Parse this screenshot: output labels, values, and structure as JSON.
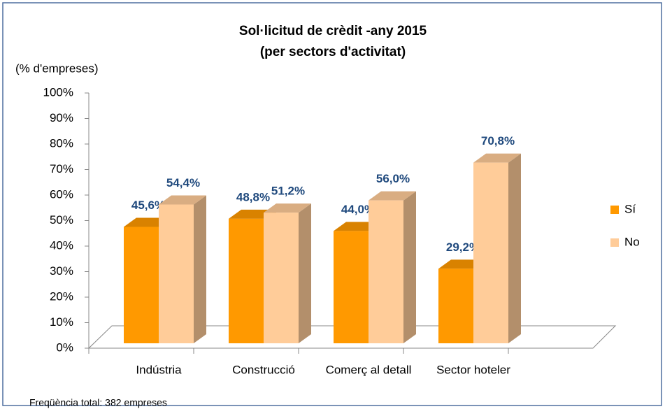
{
  "chart_data": {
    "type": "bar3d",
    "title": "Sol·licitud de crèdit -any 2015",
    "subtitle": "(per sectors d'activitat)",
    "ylabel": "(% d'empreses)",
    "footnote": "Freqüència total: 382 empreses",
    "categories": [
      "Indústria",
      "Construcció",
      "Comerç al detall",
      "Sector hoteler"
    ],
    "series": [
      {
        "name": "Sí",
        "color": "#ff9900",
        "values": [
          45.6,
          48.8,
          44.0,
          29.2
        ],
        "value_labels": [
          "45,6%",
          "48,8%",
          "44,0%",
          "29,2%"
        ]
      },
      {
        "name": "No",
        "color": "#ffcc99",
        "values": [
          54.4,
          51.2,
          56.0,
          70.8
        ],
        "value_labels": [
          "54,4%",
          "51,2%",
          "56,0%",
          "70,8%"
        ]
      }
    ],
    "ylim": [
      0,
      100
    ],
    "yticks": [
      {
        "value": 0,
        "label": "0%"
      },
      {
        "value": 10,
        "label": "10%"
      },
      {
        "value": 20,
        "label": "20%"
      },
      {
        "value": 30,
        "label": "30%"
      },
      {
        "value": 40,
        "label": "40%"
      },
      {
        "value": 50,
        "label": "50%"
      },
      {
        "value": 60,
        "label": "60%"
      },
      {
        "value": 70,
        "label": "70%"
      },
      {
        "value": 80,
        "label": "80%"
      },
      {
        "value": 90,
        "label": "90%"
      },
      {
        "value": 100,
        "label": "100%"
      }
    ],
    "legend": "right"
  }
}
